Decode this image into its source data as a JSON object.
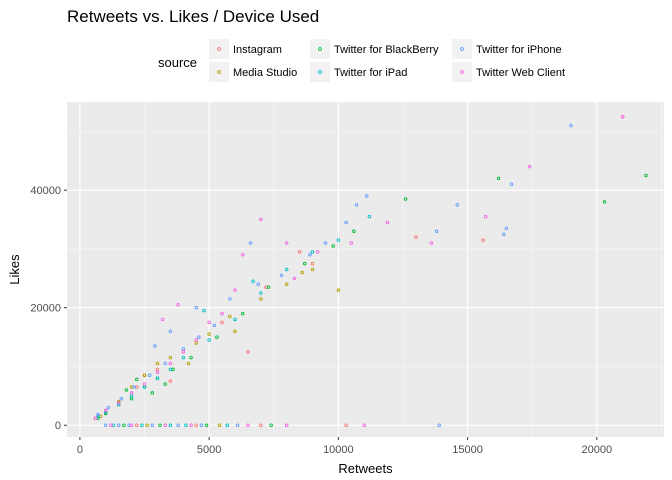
{
  "chart_data": {
    "type": "scatter",
    "title": "Retweets vs. Likes / Device Used",
    "xlabel": "Retweets",
    "ylabel": "Likes",
    "xlim": [
      -500,
      22600
    ],
    "ylim": [
      -2000,
      55000
    ],
    "xticks": [
      0,
      5000,
      10000,
      15000,
      20000
    ],
    "yticks": [
      0,
      20000,
      40000
    ],
    "grid": true,
    "legend": {
      "title": "source",
      "placement": "top",
      "columns": 3,
      "entries": [
        "Instagram",
        "Media Studio",
        "Twitter for BlackBerry",
        "Twitter for iPad",
        "Twitter for iPhone",
        "Twitter Web Client"
      ]
    },
    "series": [
      {
        "name": "Instagram",
        "color": "#F8766D",
        "points": [
          [
            21000,
            52500
          ],
          [
            15600,
            31500
          ],
          [
            13000,
            32000
          ],
          [
            9000,
            27500
          ],
          [
            7200,
            23500
          ],
          [
            5500,
            17500
          ],
          [
            4000,
            12500
          ],
          [
            3000,
            9500
          ],
          [
            2200,
            6500
          ],
          [
            1500,
            4000
          ],
          [
            1000,
            2500
          ],
          [
            600,
            1200
          ],
          [
            2500,
            8500
          ],
          [
            3500,
            7500
          ],
          [
            8500,
            29500
          ],
          [
            6500,
            12500
          ]
        ]
      },
      {
        "name": "Media Studio",
        "color": "#B79F00",
        "points": [
          [
            10000,
            23000
          ],
          [
            9000,
            26500
          ],
          [
            8600,
            26000
          ],
          [
            7000,
            21500
          ],
          [
            6000,
            16000
          ],
          [
            5000,
            15500
          ],
          [
            4500,
            14000
          ],
          [
            3500,
            11500
          ],
          [
            3000,
            10500
          ],
          [
            2500,
            8500
          ],
          [
            2000,
            6500
          ],
          [
            1500,
            4000
          ],
          [
            1000,
            2000
          ],
          [
            800,
            1500
          ],
          [
            4200,
            10500
          ],
          [
            5800,
            18500
          ],
          [
            8000,
            24000
          ]
        ]
      },
      {
        "name": "Twitter for BlackBerry",
        "color": "#00BA38",
        "points": [
          [
            21900,
            42500
          ],
          [
            20300,
            38000
          ],
          [
            16200,
            42000
          ],
          [
            12600,
            38500
          ],
          [
            10600,
            33000
          ],
          [
            9800,
            30500
          ],
          [
            8700,
            27500
          ],
          [
            7300,
            23500
          ],
          [
            6300,
            19000
          ],
          [
            5300,
            15000
          ],
          [
            4300,
            11500
          ],
          [
            3600,
            9500
          ],
          [
            3000,
            8000
          ],
          [
            2500,
            6500
          ],
          [
            2000,
            4500
          ],
          [
            1500,
            3500
          ],
          [
            1000,
            2000
          ],
          [
            700,
            1200
          ],
          [
            2800,
            5500
          ],
          [
            2200,
            7800
          ],
          [
            1800,
            6000
          ],
          [
            3300,
            7000
          ]
        ]
      },
      {
        "name": "Twitter for iPad",
        "color": "#00BFC4",
        "points": [
          [
            11200,
            35500
          ],
          [
            10000,
            31500
          ],
          [
            9000,
            29500
          ],
          [
            8000,
            26500
          ],
          [
            7000,
            22500
          ],
          [
            6000,
            18000
          ],
          [
            5000,
            14500
          ],
          [
            4000,
            11500
          ],
          [
            3500,
            9500
          ],
          [
            3000,
            8000
          ],
          [
            2500,
            6500
          ],
          [
            2000,
            5000
          ],
          [
            1500,
            3500
          ],
          [
            1000,
            2200
          ],
          [
            700,
            1500
          ],
          [
            6700,
            24500
          ],
          [
            4800,
            19500
          ]
        ]
      },
      {
        "name": "Twitter for iPhone",
        "color": "#619CFF",
        "points": [
          [
            19000,
            51000
          ],
          [
            16700,
            41000
          ],
          [
            16500,
            33500
          ],
          [
            16400,
            32500
          ],
          [
            14600,
            37500
          ],
          [
            13800,
            33000
          ],
          [
            11100,
            39000
          ],
          [
            10700,
            37500
          ],
          [
            10300,
            34500
          ],
          [
            9500,
            31000
          ],
          [
            8900,
            29000
          ],
          [
            7800,
            25500
          ],
          [
            6900,
            24000
          ],
          [
            6600,
            31000
          ],
          [
            5800,
            21500
          ],
          [
            5200,
            17000
          ],
          [
            4600,
            15000
          ],
          [
            4000,
            13000
          ],
          [
            3300,
            10500
          ],
          [
            2700,
            8500
          ],
          [
            2100,
            6500
          ],
          [
            1600,
            4500
          ],
          [
            1100,
            3000
          ],
          [
            700,
            1800
          ],
          [
            3500,
            16000
          ],
          [
            2900,
            13500
          ],
          [
            4500,
            20000
          ]
        ]
      },
      {
        "name": "Twitter Web Client",
        "color": "#F564E3",
        "points": [
          [
            21000,
            52500
          ],
          [
            17400,
            44000
          ],
          [
            15700,
            35500
          ],
          [
            13600,
            31000
          ],
          [
            11900,
            34500
          ],
          [
            10500,
            31000
          ],
          [
            8000,
            31000
          ],
          [
            7000,
            35000
          ],
          [
            6300,
            29000
          ],
          [
            6000,
            23000
          ],
          [
            5500,
            19000
          ],
          [
            5000,
            17500
          ],
          [
            4500,
            14500
          ],
          [
            4000,
            12500
          ],
          [
            3500,
            10500
          ],
          [
            3000,
            9000
          ],
          [
            2500,
            7000
          ],
          [
            2000,
            5500
          ],
          [
            1500,
            3800
          ],
          [
            1000,
            2500
          ],
          [
            600,
            1200
          ],
          [
            8300,
            25000
          ],
          [
            9200,
            29500
          ],
          [
            3800,
            20500
          ],
          [
            3200,
            18000
          ]
        ]
      }
    ],
    "zero_likes": [
      {
        "name": "Instagram",
        "x": [
          2200,
          4500,
          7000,
          10300
        ]
      },
      {
        "name": "Media Studio",
        "x": [
          2600,
          5400
        ]
      },
      {
        "name": "Twitter for BlackBerry",
        "x": [
          1700,
          3100,
          4900,
          7400
        ]
      },
      {
        "name": "Twitter for iPad",
        "x": [
          1300,
          2400,
          3500,
          4100,
          5700
        ]
      },
      {
        "name": "Twitter for iPhone",
        "x": [
          1000,
          1500,
          1900,
          2800,
          3800,
          4700,
          6100,
          13900
        ]
      },
      {
        "name": "Twitter Web Client",
        "x": [
          1200,
          2000,
          3300,
          4300,
          6500,
          8000,
          11000
        ]
      }
    ]
  }
}
